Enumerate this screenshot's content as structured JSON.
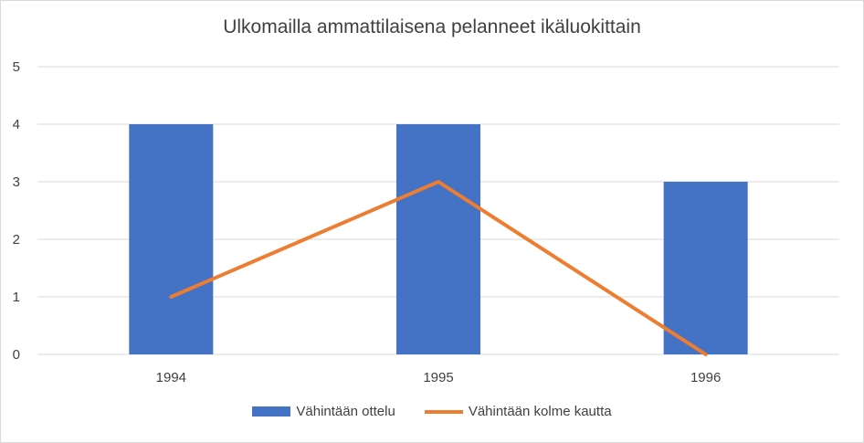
{
  "chart_data": {
    "type": "bar",
    "title": "Ulkomailla ammattilaisena pelanneet ikäluokittain",
    "categories": [
      "1994",
      "1995",
      "1996"
    ],
    "series": [
      {
        "name": "Vähintään ottelu",
        "type": "bar",
        "values": [
          4,
          4,
          3
        ],
        "color": "#4472C4"
      },
      {
        "name": "Vähintään kolme kautta",
        "type": "line",
        "values": [
          1,
          3,
          0
        ],
        "color": "#ED7D31"
      }
    ],
    "ylim": [
      0,
      5
    ],
    "yticks": [
      "0",
      "1",
      "2",
      "3",
      "4",
      "5"
    ],
    "grid": true,
    "legend_position": "bottom"
  }
}
